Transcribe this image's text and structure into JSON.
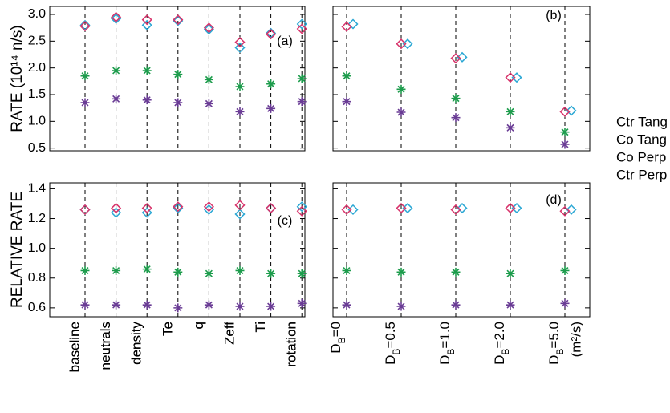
{
  "chart_data": [
    {
      "type": "scatter",
      "annotation": "(a)",
      "y_label": "RATE (10¹⁴ n/s)",
      "categories": [
        "baseline",
        "neutrals",
        "density",
        "Te",
        "q",
        "Zeff",
        "Ti",
        "rotation"
      ],
      "ylim": [
        0.45,
        3.15
      ],
      "yticks": [
        0.5,
        {
          "value": 1.0,
          "label": "1.0"
        },
        1.5,
        {
          "value": 2.0,
          "label": "2.0"
        },
        2.5,
        {
          "value": 3.0,
          "label": "3.0"
        }
      ],
      "xgrid": true,
      "legend": "right",
      "tick_labels": true,
      "series": [
        {
          "name": "Ctr Tang",
          "color": "#2aa7d4",
          "marker": "diamond",
          "values": [
            2.8,
            2.92,
            2.8,
            2.88,
            2.72,
            2.38,
            2.65,
            2.82
          ]
        },
        {
          "name": "Co Tang",
          "color": "#d8336b",
          "marker": "diamond",
          "values": [
            2.78,
            2.95,
            2.9,
            2.9,
            2.75,
            2.48,
            2.63,
            2.73
          ]
        },
        {
          "name": "Co Perp",
          "color": "#1d9c4c",
          "marker": "asterisk",
          "values": [
            1.85,
            1.95,
            1.95,
            1.88,
            1.78,
            1.65,
            1.7,
            1.8
          ]
        },
        {
          "name": "Ctr Perp",
          "color": "#6a3c95",
          "marker": "asterisk",
          "values": [
            1.35,
            1.42,
            1.4,
            1.35,
            1.33,
            1.18,
            1.24,
            1.37
          ]
        }
      ]
    },
    {
      "type": "scatter",
      "annotation": "(b)",
      "ylim": [
        0.45,
        3.15
      ],
      "yticks": [
        0.5,
        1,
        1.5,
        2,
        2.5,
        3
      ],
      "xgrid": true,
      "tick_labels": false,
      "categories": [
        null,
        null,
        null,
        null,
        null
      ],
      "series": [
        {
          "color": "#2aa7d4",
          "marker": "diamond",
          "values": [
            2.82,
            2.45,
            2.2,
            1.82,
            1.2
          ]
        },
        {
          "color": "#d8336b",
          "marker": "diamond",
          "values": [
            2.77,
            2.45,
            2.18,
            1.82,
            1.18
          ]
        },
        {
          "color": "#1d9c4c",
          "marker": "asterisk",
          "values": [
            1.85,
            1.6,
            1.43,
            1.18,
            0.8
          ]
        },
        {
          "color": "#6a3c95",
          "marker": "asterisk",
          "values": [
            1.37,
            1.17,
            1.07,
            0.88,
            0.57
          ]
        }
      ]
    },
    {
      "type": "scatter",
      "annotation": "(c)",
      "y_label": "RELATIVE RATE",
      "categories": [
        "baseline",
        "neutrals",
        "density",
        "Te",
        "q",
        "Zeff",
        "Ti",
        "rotation"
      ],
      "ylim": [
        0.54,
        1.44
      ],
      "yticks": [
        0.6,
        0.8,
        {
          "value": 1.0,
          "label": "1.0"
        },
        1.2,
        1.4
      ],
      "xgrid": true,
      "tick_labels": true,
      "series": [
        {
          "color": "#2aa7d4",
          "marker": "diamond",
          "values": [
            1.26,
            1.24,
            1.24,
            1.27,
            1.26,
            1.23,
            1.27,
            1.28
          ]
        },
        {
          "color": "#d8336b",
          "marker": "diamond",
          "values": [
            1.26,
            1.27,
            1.27,
            1.28,
            1.28,
            1.29,
            1.27,
            1.25
          ]
        },
        {
          "color": "#1d9c4c",
          "marker": "asterisk",
          "values": [
            0.85,
            0.85,
            0.86,
            0.84,
            0.83,
            0.85,
            0.83,
            0.83
          ]
        },
        {
          "color": "#6a3c95",
          "marker": "asterisk",
          "values": [
            0.62,
            0.62,
            0.62,
            0.6,
            0.62,
            0.61,
            0.61,
            0.63
          ]
        }
      ]
    },
    {
      "type": "scatter",
      "annotation": "(d)",
      "x_label": "(m²/s)",
      "categories": [
        "DB=0",
        "DB=0.5",
        "DB=1.0",
        "DB=2.0",
        "DB=5.0"
      ],
      "ylim": [
        0.54,
        1.44
      ],
      "yticks": [
        0.6,
        0.8,
        1,
        1.2,
        1.4
      ],
      "xgrid": true,
      "tick_labels": false,
      "series": [
        {
          "color": "#2aa7d4",
          "marker": "diamond",
          "values": [
            1.26,
            1.27,
            1.27,
            1.27,
            1.26
          ]
        },
        {
          "color": "#d8336b",
          "marker": "diamond",
          "values": [
            1.26,
            1.27,
            1.26,
            1.27,
            1.25
          ]
        },
        {
          "color": "#1d9c4c",
          "marker": "asterisk",
          "values": [
            0.85,
            0.84,
            0.84,
            0.83,
            0.85
          ]
        },
        {
          "color": "#6a3c95",
          "marker": "asterisk",
          "values": [
            0.62,
            0.61,
            0.62,
            0.62,
            0.63
          ]
        }
      ]
    }
  ]
}
